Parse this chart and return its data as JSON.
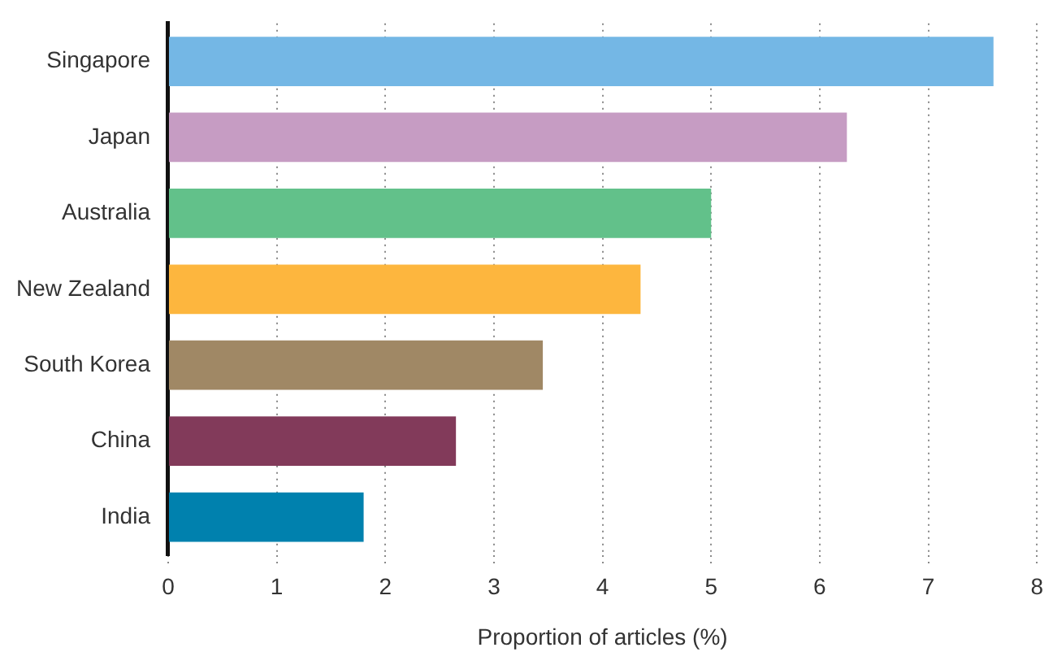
{
  "chart_data": {
    "type": "bar",
    "orientation": "horizontal",
    "xlabel": "Proportion of articles (%)",
    "categories": [
      "Singapore",
      "Japan",
      "Australia",
      "New Zealand",
      "South Korea",
      "China",
      "India"
    ],
    "values": [
      7.6,
      6.25,
      5.0,
      4.35,
      3.45,
      2.65,
      1.8
    ],
    "colors": [
      "#74b7e5",
      "#c69cc3",
      "#62c18a",
      "#fdb63e",
      "#a08865",
      "#823a5a",
      "#0081ae"
    ],
    "xlim": [
      0,
      8
    ],
    "xticks": [
      0,
      1,
      2,
      3,
      4,
      5,
      6,
      7,
      8
    ],
    "grid": "x"
  }
}
